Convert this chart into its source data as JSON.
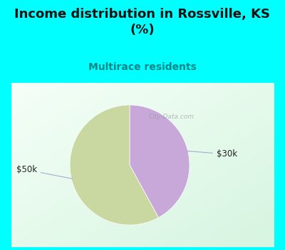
{
  "title": "Income distribution in Rossville, KS\n(%)",
  "subtitle": "Multirace residents",
  "title_color": "#111111",
  "subtitle_color": "#008888",
  "background_cyan": "#00FFFF",
  "background_panel_tl": "#d8f5e8",
  "background_panel_br": "#f0faf5",
  "slices": [
    {
      "label": "$30k",
      "value": 42,
      "color": "#c8a8d8"
    },
    {
      "label": "$50k",
      "value": 58,
      "color": "#c8d8a0"
    }
  ],
  "label_color": "#222222",
  "label_line_color": "#aaaacc",
  "watermark": "City-Data.com",
  "figsize": [
    4.0,
    3.5
  ],
  "dpi": 100,
  "title_fontsize": 13,
  "subtitle_fontsize": 10
}
